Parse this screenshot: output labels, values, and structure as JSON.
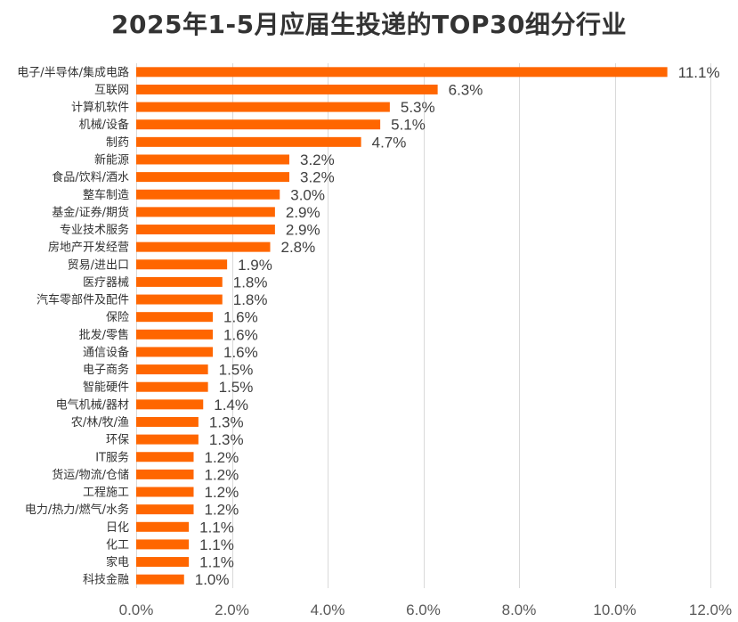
{
  "chart_data": {
    "type": "bar",
    "orientation": "horizontal",
    "title": "2025年1-5月应届生投递的TOP30细分行业",
    "categories": [
      "电子/半导体/集成电路",
      "互联网",
      "计算机软件",
      "机械/设备",
      "制药",
      "新能源",
      "食品/饮料/酒水",
      "整车制造",
      "基金/证券/期货",
      "专业技术服务",
      "房地产开发经营",
      "贸易/进出口",
      "医疗器械",
      "汽车零部件及配件",
      "保险",
      "批发/零售",
      "通信设备",
      "电子商务",
      "智能硬件",
      "电气机械/器材",
      "农/林/牧/渔",
      "环保",
      "IT服务",
      "货运/物流/仓储",
      "工程施工",
      "电力/热力/燃气/水务",
      "日化",
      "化工",
      "家电",
      "科技金融"
    ],
    "values": [
      11.1,
      6.3,
      5.3,
      5.1,
      4.7,
      3.2,
      3.2,
      3.0,
      2.9,
      2.9,
      2.8,
      1.9,
      1.8,
      1.8,
      1.6,
      1.6,
      1.6,
      1.5,
      1.5,
      1.4,
      1.3,
      1.3,
      1.2,
      1.2,
      1.2,
      1.2,
      1.1,
      1.1,
      1.1,
      1.0
    ],
    "value_labels": [
      "11.1%",
      "6.3%",
      "5.3%",
      "5.1%",
      "4.7%",
      "3.2%",
      "3.2%",
      "3.0%",
      "2.9%",
      "2.9%",
      "2.8%",
      "1.9%",
      "1.8%",
      "1.8%",
      "1.6%",
      "1.6%",
      "1.6%",
      "1.5%",
      "1.5%",
      "1.4%",
      "1.3%",
      "1.3%",
      "1.2%",
      "1.2%",
      "1.2%",
      "1.2%",
      "1.1%",
      "1.1%",
      "1.1%",
      "1.0%"
    ],
    "xlim": [
      0,
      12
    ],
    "x_ticks": [
      0,
      2,
      4,
      6,
      8,
      10,
      12
    ],
    "x_tick_labels": [
      "0.0%",
      "2.0%",
      "4.0%",
      "6.0%",
      "8.0%",
      "10.0%",
      "12.0%"
    ],
    "grid": "vertical",
    "legend": "none",
    "colors": {
      "bar": "#ff6600",
      "grid": "#d9d9d9",
      "title": "#333333"
    }
  }
}
